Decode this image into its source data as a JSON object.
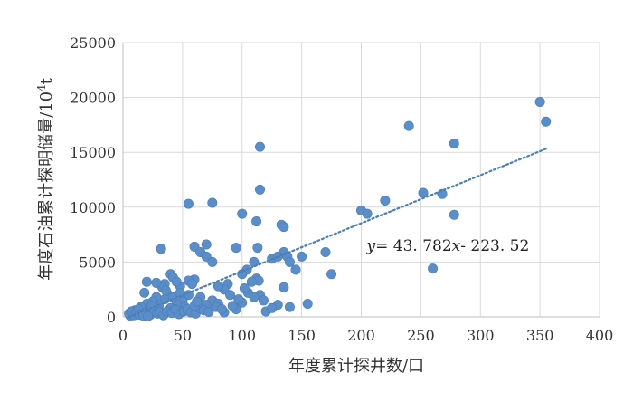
{
  "chart_data": {
    "type": "scatter",
    "xlabel": "年度累计探井数/口",
    "ylabel_main": "年度石油累计探明储量/10",
    "ylabel_sup": "4",
    "ylabel_unit": "t",
    "xlim": [
      0,
      400
    ],
    "ylim": [
      0,
      25000
    ],
    "x_ticks": [
      0,
      50,
      100,
      150,
      200,
      250,
      300,
      350,
      400
    ],
    "y_ticks": [
      0,
      5000,
      10000,
      15000,
      20000,
      25000
    ],
    "x_tick_labels": [
      "0",
      "50",
      "100",
      "150",
      "200",
      "250",
      "300",
      "350",
      "400"
    ],
    "y_tick_labels": [
      "0",
      "5000",
      "10000",
      "15000",
      "20000",
      "25000"
    ],
    "grid": true,
    "marker_color": "#5b8dc9",
    "trendline_color": "#4a7fb8",
    "trendline": {
      "slope": 43.782,
      "intercept": -223.52,
      "x_range": [
        5,
        356
      ],
      "style": "dotted"
    },
    "annotation": {
      "y_var": "y",
      "eq_mid": "= 43. 782",
      "x_var": "x",
      "eq_tail": "- 223. 52",
      "anchor_x": 200,
      "anchor_y": 6500
    },
    "points": [
      [
        350,
        19600
      ],
      [
        355,
        17800
      ],
      [
        240,
        17400
      ],
      [
        278,
        15800
      ],
      [
        115,
        15500
      ],
      [
        115,
        11600
      ],
      [
        252,
        11300
      ],
      [
        268,
        11200
      ],
      [
        220,
        10600
      ],
      [
        55,
        10300
      ],
      [
        75,
        10400
      ],
      [
        200,
        9700
      ],
      [
        205,
        9400
      ],
      [
        278,
        9300
      ],
      [
        100,
        9400
      ],
      [
        112,
        8700
      ],
      [
        133,
        8400
      ],
      [
        135,
        8200
      ],
      [
        60,
        6400
      ],
      [
        70,
        6600
      ],
      [
        65,
        5900
      ],
      [
        95,
        6300
      ],
      [
        113,
        6300
      ],
      [
        32,
        6200
      ],
      [
        170,
        5900
      ],
      [
        150,
        5500
      ],
      [
        135,
        5900
      ],
      [
        138,
        5500
      ],
      [
        125,
        5300
      ],
      [
        110,
        5000
      ],
      [
        70,
        5500
      ],
      [
        75,
        5000
      ],
      [
        140,
        5000
      ],
      [
        130,
        5500
      ],
      [
        145,
        4300
      ],
      [
        260,
        4400
      ],
      [
        175,
        3900
      ],
      [
        40,
        3900
      ],
      [
        42,
        3600
      ],
      [
        104,
        4300
      ],
      [
        100,
        3900
      ],
      [
        112,
        3500
      ],
      [
        114,
        3300
      ],
      [
        88,
        3000
      ],
      [
        85,
        2500
      ],
      [
        80,
        2800
      ],
      [
        60,
        3400
      ],
      [
        55,
        3300
      ],
      [
        58,
        3000
      ],
      [
        48,
        2800
      ],
      [
        45,
        3200
      ],
      [
        35,
        3000
      ],
      [
        33,
        2700
      ],
      [
        20,
        3200
      ],
      [
        18,
        2200
      ],
      [
        28,
        3100
      ],
      [
        135,
        2700
      ],
      [
        155,
        1200
      ],
      [
        140,
        900
      ],
      [
        100,
        1300
      ],
      [
        120,
        500
      ],
      [
        95,
        700
      ],
      [
        85,
        400
      ],
      [
        130,
        1100
      ],
      [
        115,
        2000
      ],
      [
        105,
        2200
      ],
      [
        110,
        1800
      ],
      [
        90,
        2000
      ],
      [
        75,
        1500
      ],
      [
        80,
        1200
      ],
      [
        65,
        1800
      ],
      [
        70,
        1100
      ],
      [
        55,
        2000
      ],
      [
        50,
        1500
      ],
      [
        52,
        900
      ],
      [
        45,
        1200
      ],
      [
        40,
        800
      ],
      [
        38,
        2000
      ],
      [
        35,
        1600
      ],
      [
        30,
        1000
      ],
      [
        28,
        1800
      ],
      [
        25,
        1400
      ],
      [
        22,
        700
      ],
      [
        20,
        1200
      ],
      [
        18,
        500
      ],
      [
        15,
        900
      ],
      [
        12,
        300
      ],
      [
        10,
        600
      ],
      [
        8,
        200
      ],
      [
        6,
        100
      ],
      [
        5,
        300
      ],
      [
        7,
        500
      ],
      [
        9,
        150
      ],
      [
        11,
        400
      ],
      [
        13,
        700
      ],
      [
        16,
        250
      ],
      [
        19,
        350
      ],
      [
        23,
        200
      ],
      [
        26,
        600
      ],
      [
        29,
        300
      ],
      [
        31,
        450
      ],
      [
        34,
        150
      ],
      [
        37,
        500
      ],
      [
        41,
        350
      ],
      [
        44,
        650
      ],
      [
        47,
        250
      ],
      [
        51,
        500
      ],
      [
        54,
        700
      ],
      [
        57,
        400
      ],
      [
        61,
        300
      ],
      [
        64,
        800
      ],
      [
        68,
        600
      ],
      [
        72,
        450
      ],
      [
        78,
        900
      ],
      [
        83,
        700
      ],
      [
        92,
        1000
      ],
      [
        97,
        1600
      ],
      [
        102,
        2600
      ],
      [
        108,
        3200
      ],
      [
        118,
        1500
      ],
      [
        125,
        800
      ],
      [
        60,
        1000
      ],
      [
        62,
        1400
      ],
      [
        42,
        1800
      ],
      [
        48,
        2200
      ],
      [
        36,
        2400
      ],
      [
        24,
        1000
      ],
      [
        14,
        200
      ],
      [
        17,
        100
      ],
      [
        21,
        50
      ]
    ]
  }
}
